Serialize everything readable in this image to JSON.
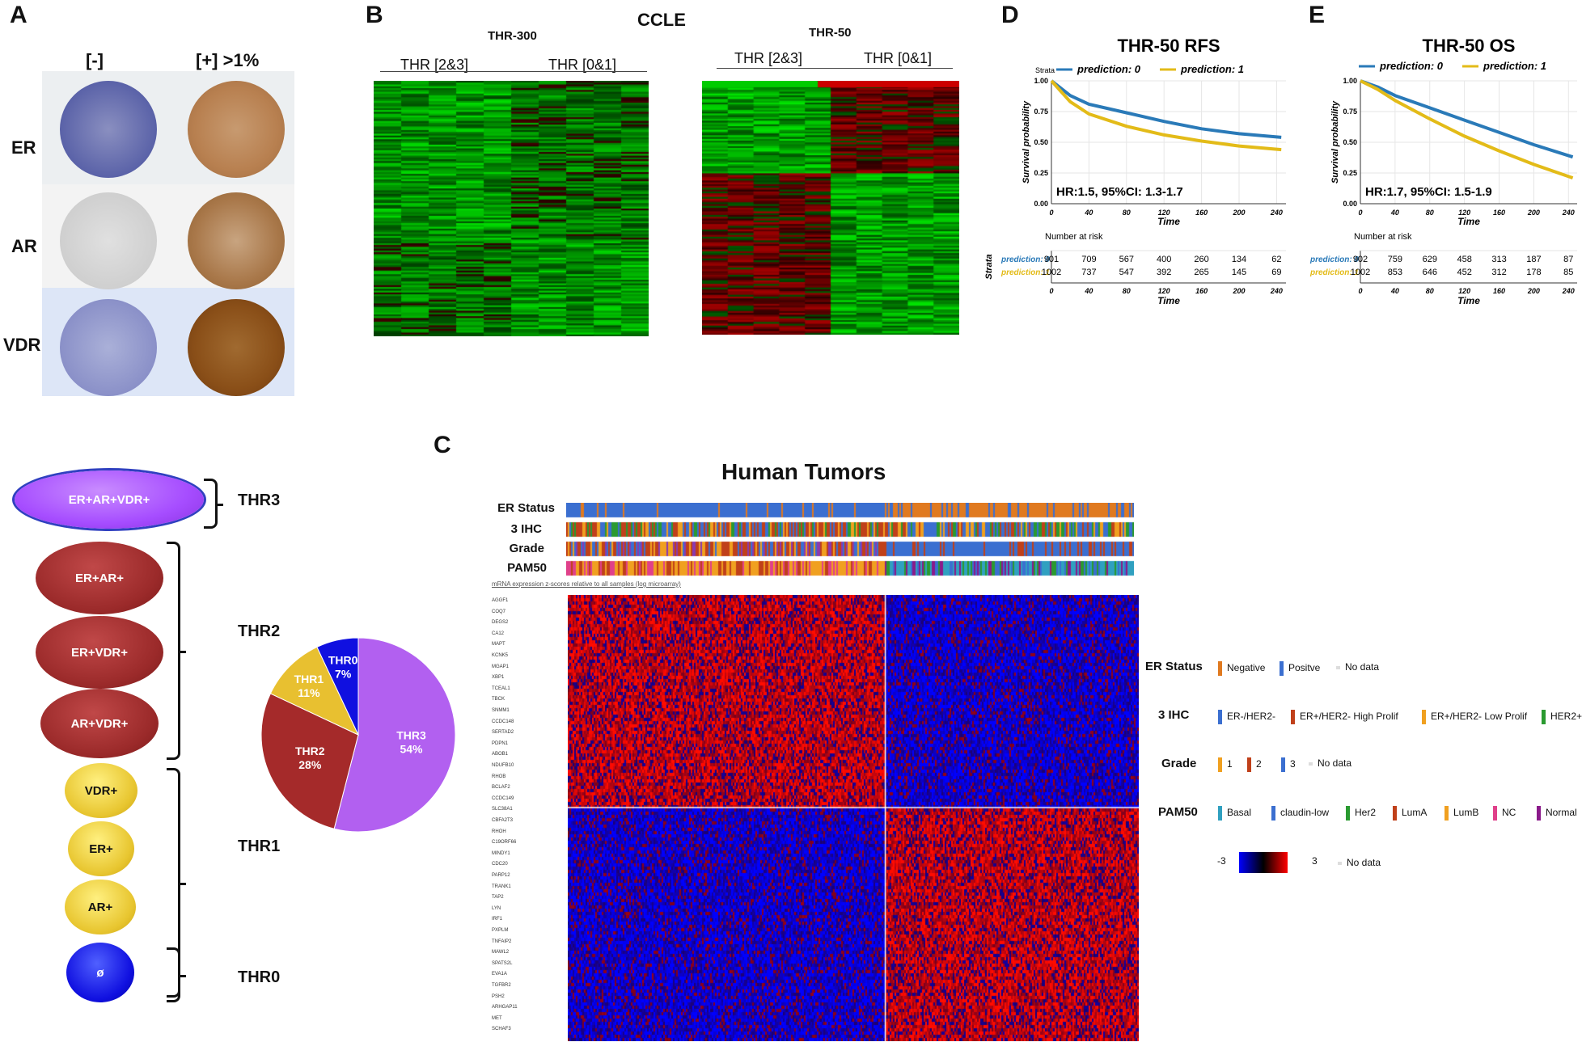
{
  "panel_a": {
    "letter": "A",
    "col_neg": "[-]",
    "col_pos": "[+] >1%",
    "rows": [
      "ER",
      "AR",
      "VDR"
    ]
  },
  "hierarchy": {
    "ovals": [
      "ER+AR+VDR+",
      "ER+AR+",
      "ER+VDR+",
      "AR+VDR+",
      "VDR+",
      "ER+",
      "AR+",
      "ø"
    ],
    "groups": [
      "THR3",
      "THR2",
      "THR1",
      "THR0"
    ],
    "colors": {
      "thr3": "#a64dff",
      "thr2": "#9b2a2a",
      "thr1": "#e8c630",
      "thr0": "#1010e0"
    }
  },
  "pie": {
    "chart_data": {
      "type": "pie",
      "categories": [
        "THR3",
        "THR2",
        "THR1",
        "THR0"
      ],
      "values": [
        54,
        28,
        11,
        7
      ],
      "labels": [
        "54%",
        "28%",
        "11%",
        "7%"
      ],
      "colors": [
        "#b260f0",
        "#a52a2a",
        "#e8c030",
        "#1010e0"
      ]
    }
  },
  "panel_b": {
    "letter": "B",
    "title_center": "CCLE",
    "left_title": "THR-300",
    "right_title": "THR-50",
    "groups_left": [
      "THR [2&3]",
      "THR [0&1]"
    ],
    "groups_right": [
      "THR [2&3]",
      "THR [0&1]"
    ]
  },
  "panel_d": {
    "letter": "D",
    "chart_data": {
      "type": "line",
      "title": "THR-50 RFS",
      "xlabel": "Time",
      "ylabel": "Survival probability",
      "xlim": [
        0,
        250
      ],
      "ylim": [
        0,
        1
      ],
      "xticks": [
        "0",
        "40",
        "80",
        "120",
        "160",
        "200",
        "240"
      ],
      "yticks": [
        "0.00",
        "0.25",
        "0.50",
        "0.75",
        "1.00"
      ],
      "legend_title": "Strata",
      "series": [
        {
          "name": "prediction: 0",
          "color": "#2a7ab8",
          "x": [
            0,
            20,
            40,
            80,
            120,
            160,
            200,
            245
          ],
          "y": [
            1.0,
            0.88,
            0.81,
            0.74,
            0.67,
            0.61,
            0.57,
            0.54
          ]
        },
        {
          "name": "prediction: 1",
          "color": "#e3bb18",
          "x": [
            0,
            20,
            40,
            80,
            120,
            160,
            200,
            245
          ],
          "y": [
            1.0,
            0.83,
            0.73,
            0.63,
            0.56,
            0.51,
            0.47,
            0.44
          ]
        }
      ],
      "annotation": "HR:1.5, 95%CI: 1.3-1.7",
      "risk_title": "Number at risk",
      "risk_strata_label": "Strata",
      "risk_rows": [
        {
          "name": "prediction: 0",
          "values": [
            "901",
            "709",
            "567",
            "400",
            "260",
            "134",
            "62"
          ]
        },
        {
          "name": "prediction: 1",
          "values": [
            "1002",
            "737",
            "547",
            "392",
            "265",
            "145",
            "69"
          ]
        }
      ]
    }
  },
  "panel_e": {
    "letter": "E",
    "chart_data": {
      "type": "line",
      "title": "THR-50 OS",
      "xlabel": "Time",
      "ylabel": "Survival probability",
      "xlim": [
        0,
        250
      ],
      "ylim": [
        0,
        1
      ],
      "xticks": [
        "0",
        "40",
        "80",
        "120",
        "160",
        "200",
        "240"
      ],
      "yticks": [
        "0.00",
        "0.25",
        "0.50",
        "0.75",
        "1.00"
      ],
      "series": [
        {
          "name": "prediction: 0",
          "color": "#2a7ab8",
          "x": [
            0,
            20,
            40,
            80,
            120,
            160,
            200,
            245
          ],
          "y": [
            1.0,
            0.95,
            0.88,
            0.78,
            0.68,
            0.58,
            0.48,
            0.38
          ]
        },
        {
          "name": "prediction: 1",
          "color": "#e3bb18",
          "x": [
            0,
            20,
            40,
            80,
            120,
            160,
            200,
            245
          ],
          "y": [
            1.0,
            0.93,
            0.84,
            0.69,
            0.55,
            0.43,
            0.32,
            0.21
          ]
        }
      ],
      "annotation": "HR:1.7, 95%CI: 1.5-1.9",
      "risk_title": "Number at risk",
      "risk_rows": [
        {
          "name": "prediction: 0",
          "values": [
            "902",
            "759",
            "629",
            "458",
            "313",
            "187",
            "87"
          ]
        },
        {
          "name": "prediction: 1",
          "values": [
            "1002",
            "853",
            "646",
            "452",
            "312",
            "178",
            "85"
          ]
        }
      ]
    }
  },
  "panel_c": {
    "letter": "C",
    "title": "Human Tumors",
    "tracks": [
      "ER Status",
      "3 IHC",
      "Grade",
      "PAM50"
    ],
    "subtitle": "mRNA expression z-scores relative to all samples (log microarray)",
    "genes": [
      "AGGF1",
      "COQ7",
      "DEGS2",
      "CA12",
      "MAPT",
      "KCNK5",
      "MGAP1",
      "XBP1",
      "TCEAL1",
      "TBCK",
      "SNMM1",
      "CCDC148",
      "SERTAD2",
      "PDPN1",
      "ABOB1",
      "NDUFB10",
      "RHOB",
      "BCLAF2",
      "CCDC149",
      "SLC38A1",
      "CBFA2T3",
      "RHOH",
      "C19ORF66",
      "MINDY1",
      "CDC20",
      "PARP12",
      "TRANK1",
      "TAP2",
      "LYN",
      "IRF1",
      "PXPLM",
      "TNFAIP2",
      "MAWL2",
      "SPATS2L",
      "EVA1A",
      "TGFBR2",
      "PSH2",
      "ARHGAP11",
      "MET",
      "SCHAF3"
    ],
    "legend": {
      "er_title": "ER Status",
      "er_items": [
        {
          "label": "Negative",
          "color": "#e07a20"
        },
        {
          "label": "Positve",
          "color": "#3b6fd0"
        },
        {
          "label": "No data",
          "color": "#dddddd"
        }
      ],
      "ihc_title": "3 IHC",
      "ihc_items": [
        {
          "label": "ER-/HER2-",
          "color": "#3b6fd0"
        },
        {
          "label": "ER+/HER2- High Prolif",
          "color": "#c0401a"
        },
        {
          "label": "ER+/HER2- Low Prolif",
          "color": "#f0a020"
        },
        {
          "label": "HER2+",
          "color": "#2a9a30"
        }
      ],
      "grade_title": "Grade",
      "grade_items": [
        {
          "label": "1",
          "color": "#f0a020"
        },
        {
          "label": "2",
          "color": "#c0401a"
        },
        {
          "label": "3",
          "color": "#3b6fd0"
        },
        {
          "label": "No data",
          "color": "#dddddd"
        }
      ],
      "pam_title": "PAM50",
      "pam_items": [
        {
          "label": "Basal",
          "color": "#30a0c0"
        },
        {
          "label": "claudin-low",
          "color": "#3b6fd0"
        },
        {
          "label": "Her2",
          "color": "#2a9a30"
        },
        {
          "label": "LumA",
          "color": "#c0401a"
        },
        {
          "label": "LumB",
          "color": "#f0a020"
        },
        {
          "label": "NC",
          "color": "#e0408a"
        },
        {
          "label": "Normal",
          "color": "#8a1a8a"
        }
      ],
      "scale_min": "-3",
      "scale_max": "3",
      "scale_nodata": "No data"
    }
  }
}
